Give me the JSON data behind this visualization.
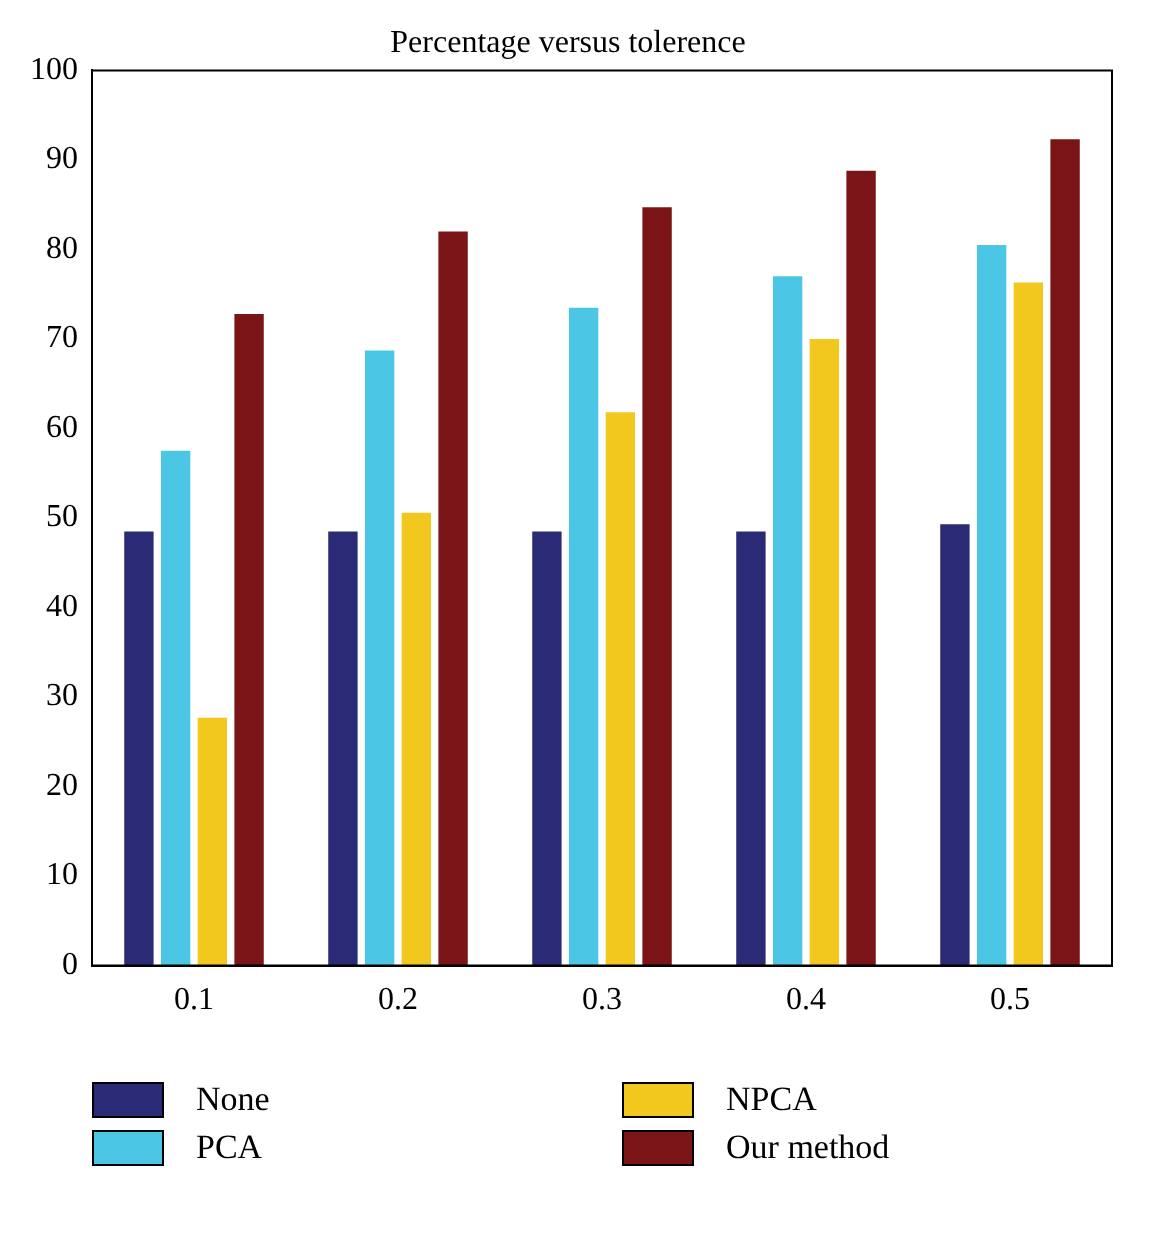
{
  "chart_data": {
    "type": "bar",
    "title": "Percentage versus tolerence",
    "categories": [
      "0.1",
      "0.2",
      "0.3",
      "0.4",
      "0.5"
    ],
    "series": [
      {
        "name": "None",
        "color": "#2b2a77",
        "values": [
          48.5,
          48.5,
          48.5,
          48.5,
          49.3
        ]
      },
      {
        "name": "PCA",
        "color": "#4bc7e5",
        "values": [
          57.5,
          68.7,
          73.5,
          77,
          80.5
        ]
      },
      {
        "name": "NPCA",
        "color": "#f2c81f",
        "values": [
          27.7,
          50.6,
          61.8,
          70,
          76.3
        ]
      },
      {
        "name": "Our method",
        "color": "#7b1416",
        "values": [
          72.8,
          82,
          84.7,
          88.8,
          92.3
        ]
      }
    ],
    "ylim": [
      0,
      100
    ],
    "yticks": [
      0,
      10,
      20,
      30,
      40,
      50,
      60,
      70,
      80,
      90,
      100
    ],
    "grid": false,
    "legend": "bottom"
  }
}
